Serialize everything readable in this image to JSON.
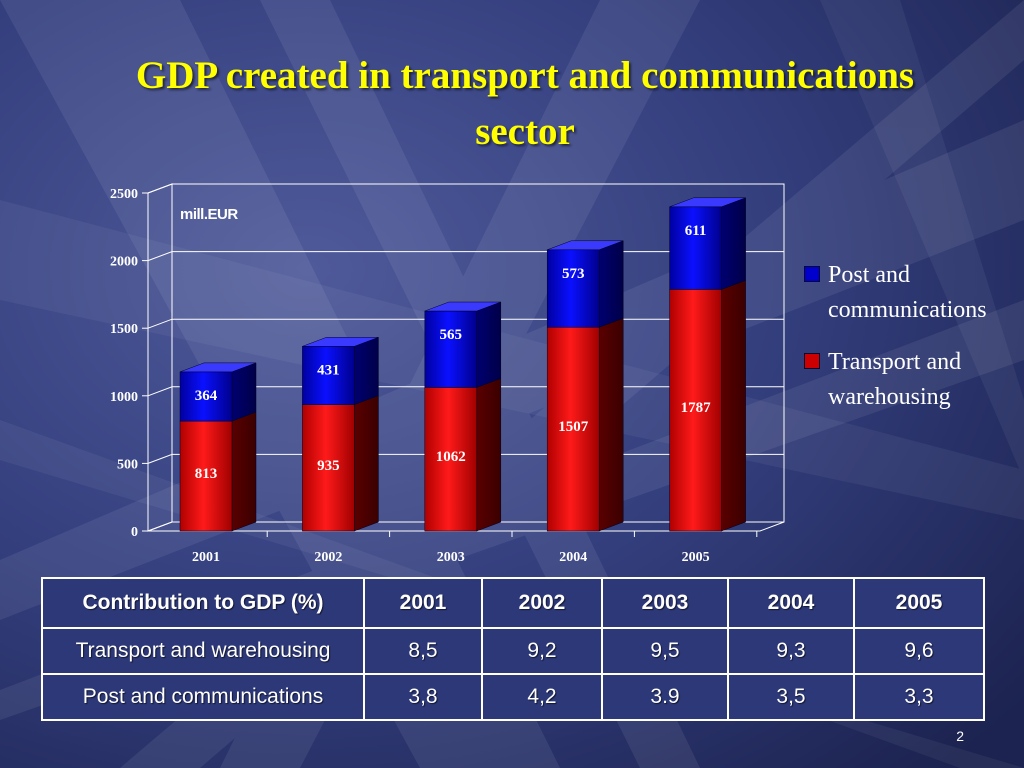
{
  "slide": {
    "title_line1": "GDP created in transport and communications",
    "title_line2": "sector",
    "page_number": "2"
  },
  "colors": {
    "background": "#2a3366",
    "title": "#ffff00",
    "post_series": "#0000cc",
    "transport_series": "#cc0000"
  },
  "chart_data": {
    "type": "bar",
    "stacked": true,
    "style": "3d",
    "categories": [
      "2001",
      "2002",
      "2003",
      "2004",
      "2005"
    ],
    "series": [
      {
        "name": "Transport and warehousing",
        "values": [
          813,
          935,
          1062,
          1507,
          1787
        ],
        "color": "#cc0000"
      },
      {
        "name": "Post and communications",
        "values": [
          364,
          431,
          565,
          573,
          611
        ],
        "color": "#0000cc"
      }
    ],
    "ylabel": "mill.EUR",
    "ylim": [
      0,
      2500
    ],
    "yticks": [
      0,
      500,
      1000,
      1500,
      2000,
      2500
    ],
    "grid": true,
    "legend": "right"
  },
  "legend": {
    "items": [
      {
        "label": "Post and communications",
        "color": "#0000cc"
      },
      {
        "label": "Transport and warehousing",
        "color": "#cc0000"
      }
    ]
  },
  "table": {
    "header": [
      "Contribution to GDP (%)",
      "2001",
      "2002",
      "2003",
      "2004",
      "2005"
    ],
    "rows": [
      [
        "Transport and warehousing",
        "8,5",
        "9,2",
        "9,5",
        "9,3",
        "9,6"
      ],
      [
        "Post and communications",
        "3,8",
        "4,2",
        "3.9",
        "3,5",
        "3,3"
      ]
    ]
  }
}
